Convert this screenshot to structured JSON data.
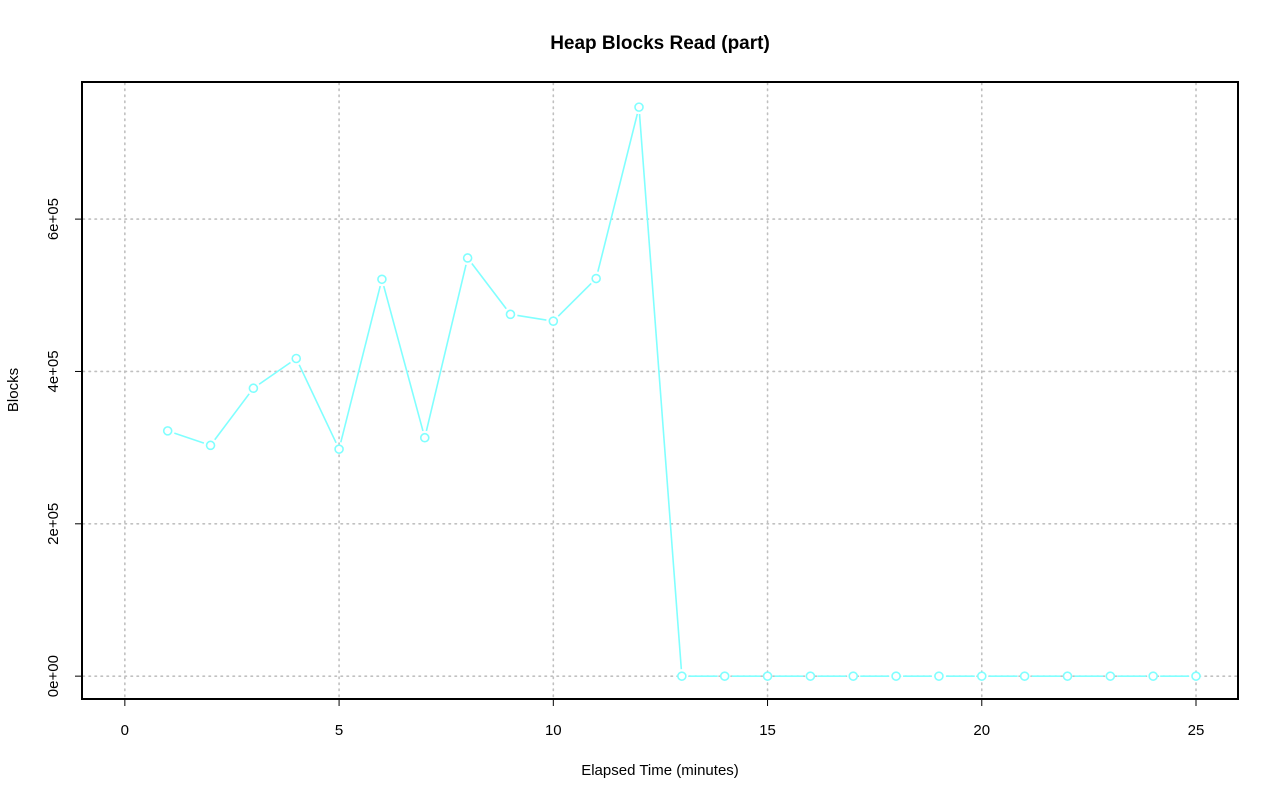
{
  "chart_data": {
    "type": "line",
    "title": "Heap Blocks Read (part)",
    "xlabel": "Elapsed Time (minutes)",
    "ylabel": "Blocks",
    "xlim": [
      -1,
      25.98
    ],
    "ylim": [
      -30000,
      780000
    ],
    "x_ticks": [
      0,
      5,
      10,
      15,
      20,
      25
    ],
    "x_tick_labels": [
      "0",
      "5",
      "10",
      "15",
      "20",
      "25"
    ],
    "y_ticks": [
      0,
      200000,
      400000,
      600000
    ],
    "y_tick_labels": [
      "0e+00",
      "2e+05",
      "4e+05",
      "6e+05"
    ],
    "grid": true,
    "legend": "none",
    "series": [
      {
        "color": "#80ffff",
        "marker": "open-circle",
        "x": [
          1,
          2,
          3,
          4,
          5,
          6,
          7,
          8,
          9,
          10,
          11,
          12,
          13,
          14,
          15,
          16,
          17,
          18,
          19,
          20,
          21,
          22,
          23,
          24,
          25
        ],
        "y": [
          322000,
          303000,
          378000,
          417000,
          298000,
          521000,
          313000,
          549000,
          475000,
          466000,
          522000,
          747000,
          0,
          0,
          0,
          0,
          0,
          0,
          0,
          0,
          0,
          0,
          0,
          0,
          0
        ]
      }
    ]
  }
}
